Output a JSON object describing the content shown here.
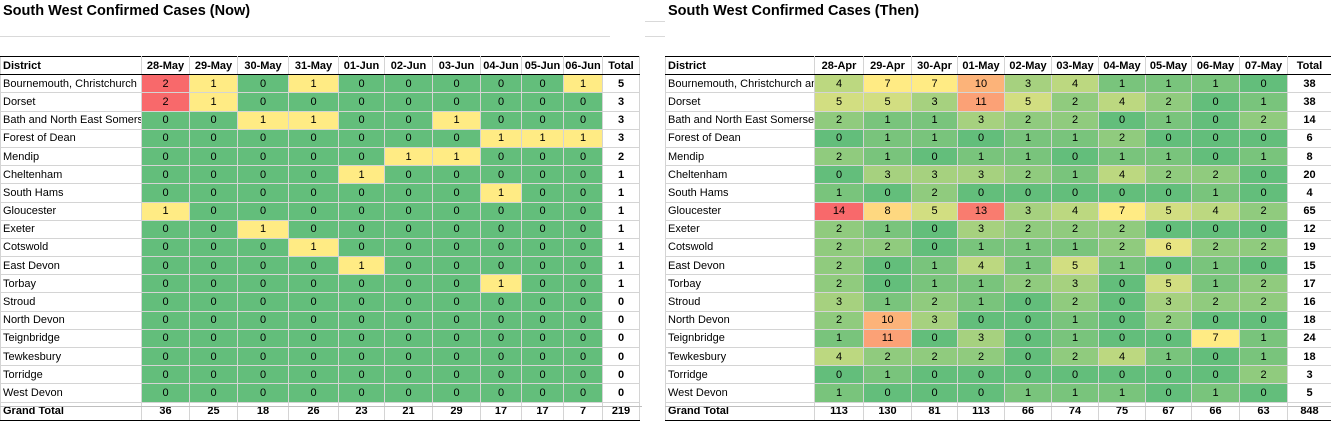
{
  "left": {
    "title": "South West Confirmed Cases (Now)",
    "header_district": "District",
    "header_total": "Total",
    "dates": [
      "28-May",
      "29-May",
      "30-May",
      "31-May",
      "01-Jun",
      "02-Jun",
      "03-Jun",
      "04-Jun",
      "05-Jun",
      "06-Jun"
    ],
    "rows": [
      {
        "district": "Bournemouth, Christchurch",
        "values": [
          2,
          1,
          0,
          1,
          0,
          0,
          0,
          0,
          0,
          1
        ],
        "total": 5
      },
      {
        "district": "Dorset",
        "values": [
          2,
          1,
          0,
          0,
          0,
          0,
          0,
          0,
          0,
          0
        ],
        "total": 3
      },
      {
        "district": "Bath and North East Somerset",
        "values": [
          0,
          0,
          1,
          1,
          0,
          0,
          1,
          0,
          0,
          0
        ],
        "total": 3
      },
      {
        "district": "Forest of Dean",
        "values": [
          0,
          0,
          0,
          0,
          0,
          0,
          0,
          1,
          1,
          1
        ],
        "total": 3
      },
      {
        "district": "Mendip",
        "values": [
          0,
          0,
          0,
          0,
          0,
          1,
          1,
          0,
          0,
          0
        ],
        "total": 2
      },
      {
        "district": "Cheltenham",
        "values": [
          0,
          0,
          0,
          0,
          1,
          0,
          0,
          0,
          0,
          0
        ],
        "total": 1
      },
      {
        "district": "South Hams",
        "values": [
          0,
          0,
          0,
          0,
          0,
          0,
          0,
          1,
          0,
          0
        ],
        "total": 1
      },
      {
        "district": "Gloucester",
        "values": [
          1,
          0,
          0,
          0,
          0,
          0,
          0,
          0,
          0,
          0
        ],
        "total": 1
      },
      {
        "district": "Exeter",
        "values": [
          0,
          0,
          1,
          0,
          0,
          0,
          0,
          0,
          0,
          0
        ],
        "total": 1
      },
      {
        "district": "Cotswold",
        "values": [
          0,
          0,
          0,
          1,
          0,
          0,
          0,
          0,
          0,
          0
        ],
        "total": 1
      },
      {
        "district": "East Devon",
        "values": [
          0,
          0,
          0,
          0,
          1,
          0,
          0,
          0,
          0,
          0
        ],
        "total": 1
      },
      {
        "district": "Torbay",
        "values": [
          0,
          0,
          0,
          0,
          0,
          0,
          0,
          1,
          0,
          0
        ],
        "total": 1
      },
      {
        "district": "Stroud",
        "values": [
          0,
          0,
          0,
          0,
          0,
          0,
          0,
          0,
          0,
          0
        ],
        "total": 0
      },
      {
        "district": "North Devon",
        "values": [
          0,
          0,
          0,
          0,
          0,
          0,
          0,
          0,
          0,
          0
        ],
        "total": 0
      },
      {
        "district": "Teignbridge",
        "values": [
          0,
          0,
          0,
          0,
          0,
          0,
          0,
          0,
          0,
          0
        ],
        "total": 0
      },
      {
        "district": "Tewkesbury",
        "values": [
          0,
          0,
          0,
          0,
          0,
          0,
          0,
          0,
          0,
          0
        ],
        "total": 0
      },
      {
        "district": "Torridge",
        "values": [
          0,
          0,
          0,
          0,
          0,
          0,
          0,
          0,
          0,
          0
        ],
        "total": 0
      },
      {
        "district": "West Devon",
        "values": [
          0,
          0,
          0,
          0,
          0,
          0,
          0,
          0,
          0,
          0
        ],
        "total": 0
      }
    ],
    "grand": {
      "label": "Grand Total",
      "values": [
        36,
        25,
        18,
        26,
        23,
        21,
        29,
        17,
        17,
        7
      ],
      "total": 219
    }
  },
  "right": {
    "title": "South West Confirmed Cases (Then)",
    "header_district": "District",
    "header_total": "Total",
    "dates": [
      "28-Apr",
      "29-Apr",
      "30-Apr",
      "01-May",
      "02-May",
      "03-May",
      "04-May",
      "05-May",
      "06-May",
      "07-May"
    ],
    "rows": [
      {
        "district": "Bournemouth, Christchurch and Poole",
        "values": [
          4,
          7,
          7,
          10,
          3,
          4,
          1,
          1,
          1,
          0
        ],
        "total": 38
      },
      {
        "district": "Dorset",
        "values": [
          5,
          5,
          3,
          11,
          5,
          2,
          4,
          2,
          0,
          1
        ],
        "total": 38
      },
      {
        "district": "Bath and North East Somerset",
        "values": [
          2,
          1,
          1,
          3,
          2,
          2,
          0,
          1,
          0,
          2
        ],
        "total": 14
      },
      {
        "district": "Forest of Dean",
        "values": [
          0,
          1,
          1,
          0,
          1,
          1,
          2,
          0,
          0,
          0
        ],
        "total": 6
      },
      {
        "district": "Mendip",
        "values": [
          2,
          1,
          0,
          1,
          1,
          0,
          1,
          1,
          0,
          1
        ],
        "total": 8
      },
      {
        "district": "Cheltenham",
        "values": [
          0,
          3,
          3,
          3,
          2,
          1,
          4,
          2,
          2,
          0
        ],
        "total": 20
      },
      {
        "district": "South Hams",
        "values": [
          1,
          0,
          2,
          0,
          0,
          0,
          0,
          0,
          1,
          0
        ],
        "total": 4
      },
      {
        "district": "Gloucester",
        "values": [
          14,
          8,
          5,
          13,
          3,
          4,
          7,
          5,
          4,
          2
        ],
        "total": 65
      },
      {
        "district": "Exeter",
        "values": [
          2,
          1,
          0,
          3,
          2,
          2,
          2,
          0,
          0,
          0
        ],
        "total": 12
      },
      {
        "district": "Cotswold",
        "values": [
          2,
          2,
          0,
          1,
          1,
          1,
          2,
          6,
          2,
          2
        ],
        "total": 19
      },
      {
        "district": "East Devon",
        "values": [
          2,
          0,
          1,
          4,
          1,
          5,
          1,
          0,
          1,
          0
        ],
        "total": 15
      },
      {
        "district": "Torbay",
        "values": [
          2,
          0,
          1,
          1,
          2,
          3,
          0,
          5,
          1,
          2
        ],
        "total": 17
      },
      {
        "district": "Stroud",
        "values": [
          3,
          1,
          2,
          1,
          0,
          2,
          0,
          3,
          2,
          2
        ],
        "total": 16
      },
      {
        "district": "North Devon",
        "values": [
          2,
          10,
          3,
          0,
          0,
          1,
          0,
          2,
          0,
          0
        ],
        "total": 18
      },
      {
        "district": "Teignbridge",
        "values": [
          1,
          11,
          0,
          3,
          0,
          1,
          0,
          0,
          7,
          1
        ],
        "total": 24
      },
      {
        "district": "Tewkesbury",
        "values": [
          4,
          2,
          2,
          2,
          0,
          2,
          4,
          1,
          0,
          1
        ],
        "total": 18
      },
      {
        "district": "Torridge",
        "values": [
          0,
          1,
          0,
          0,
          0,
          0,
          0,
          0,
          0,
          2
        ],
        "total": 3
      },
      {
        "district": "West Devon",
        "values": [
          1,
          0,
          0,
          0,
          1,
          1,
          1,
          0,
          1,
          0
        ],
        "total": 5
      }
    ],
    "grand": {
      "label": "Grand Total",
      "values": [
        113,
        130,
        81,
        113,
        66,
        74,
        75,
        67,
        66,
        63
      ],
      "total": 848
    }
  },
  "colors": {
    "scale_low": "#63be7b",
    "scale_mid": "#ffeb84",
    "scale_high": "#f8696b"
  }
}
